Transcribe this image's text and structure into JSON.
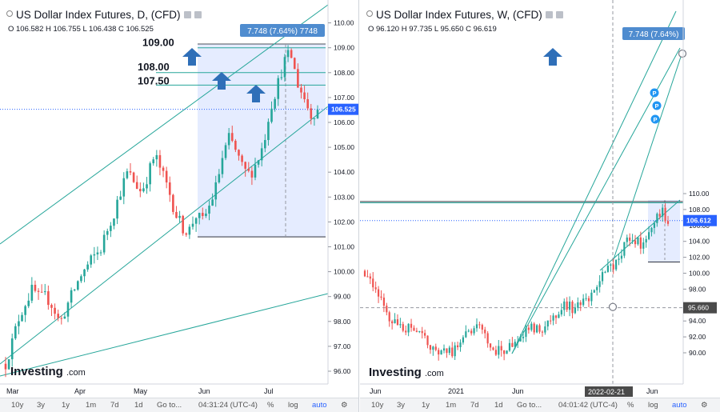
{
  "left": {
    "title": "US Dollar Index Futures, D, (CFD)",
    "ohlc": "O 106.582 H 106.755 L 106.438 C 106.525",
    "price_label": "106.525",
    "measure_label": "7.748 (7.64%) 7748",
    "levels": [
      "109.00",
      "108.00",
      "107.50"
    ],
    "logo": "Investing",
    "logo_suffix": ".com",
    "x_labels": [
      "Mar",
      "Apr",
      "May",
      "Jun",
      "Jul"
    ],
    "toolbar": {
      "r10y": "10y",
      "r3y": "3y",
      "r1y": "1y",
      "r1m": "1m",
      "r7d": "7d",
      "r1d": "1d",
      "goto": "Go to...",
      "time": "04:31:24 (UTC-4)",
      "pct": "%",
      "log": "log",
      "auto": "auto"
    }
  },
  "right": {
    "title": "US Dollar Index Futures, W, (CFD)",
    "ohlc": "O 96.120 H 97.735 L 95.650 C 96.619",
    "price_label": "106.612",
    "cross_label": "95.660",
    "measure_label": "7.748 (7.64%)",
    "logo": "Investing",
    "logo_suffix": ".com",
    "x_labels": [
      "Jun",
      "2021",
      "Jun",
      "2022-02-21",
      "Jun"
    ],
    "toolbar": {
      "r10y": "10y",
      "r3y": "3y",
      "r1y": "1y",
      "r1m": "1m",
      "r7d": "7d",
      "r1d": "1d",
      "goto": "Go to...",
      "time": "04:01:42 (UTC-4)",
      "pct": "%",
      "log": "log",
      "auto": "auto"
    }
  },
  "chart_data": [
    {
      "type": "candlestick",
      "title": "US Dollar Index Futures, D, (CFD)",
      "y_ticks": [
        96.0,
        97.0,
        98.0,
        99.0,
        100.0,
        101.0,
        102.0,
        103.0,
        104.0,
        105.0,
        106.0,
        107.0,
        108.0,
        109.0,
        110.0
      ],
      "ylim": [
        95.5,
        110.7
      ],
      "last_price": 106.525,
      "horizontal_levels": [
        109.0,
        108.0,
        107.5
      ],
      "x_labels": [
        "Mar",
        "Apr",
        "May",
        "Jun",
        "Jul"
      ],
      "colors": {
        "up": "#26a69a",
        "down": "#ef5350",
        "trend": "#26a69a",
        "measure": "#2962ff"
      },
      "close_path": [
        96.3,
        97.2,
        98.2,
        98.8,
        99.3,
        98.9,
        99.0,
        98.6,
        97.9,
        98.6,
        99.2,
        99.8,
        100.2,
        100.6,
        100.9,
        101.7,
        102.4,
        103.3,
        104.0,
        103.6,
        103.2,
        103.9,
        104.7,
        104.0,
        103.3,
        102.4,
        101.8,
        101.6,
        102.3,
        102.0,
        102.6,
        103.4,
        104.6,
        105.4,
        104.8,
        104.1,
        103.9,
        104.4,
        105.1,
        106.6,
        107.4,
        108.4,
        108.8,
        107.6,
        107.0,
        106.3,
        106.5
      ],
      "x_start": 7,
      "x_end": 397
    },
    {
      "type": "candlestick",
      "title": "US Dollar Index Futures, W, (CFD)",
      "y_ticks": [
        90.0,
        92.0,
        94.0,
        96.0,
        98.0,
        100.0,
        102.0,
        104.0,
        106.0,
        108.0,
        110.0
      ],
      "ylim": [
        88.2,
        111.0
      ],
      "last_price": 106.612,
      "marked_price": 95.66,
      "x_labels": [
        "Jun",
        "2021",
        "Jun",
        "2022-02-21",
        "Jun"
      ],
      "colors": {
        "up": "#26a69a",
        "down": "#ef5350",
        "trend": "#26a69a",
        "measure": "#2962ff"
      },
      "close_path": [
        100.3,
        99.0,
        97.0,
        95.5,
        94.0,
        93.3,
        92.5,
        93.7,
        92.2,
        91.7,
        90.3,
        89.9,
        90.5,
        90.0,
        91.5,
        92.8,
        92.7,
        93.2,
        91.8,
        90.6,
        90.2,
        90.3,
        90.8,
        92.3,
        92.5,
        93.3,
        92.6,
        93.8,
        94.4,
        95.8,
        96.1,
        95.5,
        95.9,
        96.6,
        97.2,
        99.3,
        100.3,
        101.0,
        102.7,
        103.9,
        104.2,
        103.5,
        105.0,
        106.9,
        107.8,
        106.6
      ],
      "x_start": 6,
      "x_end": 385
    }
  ]
}
